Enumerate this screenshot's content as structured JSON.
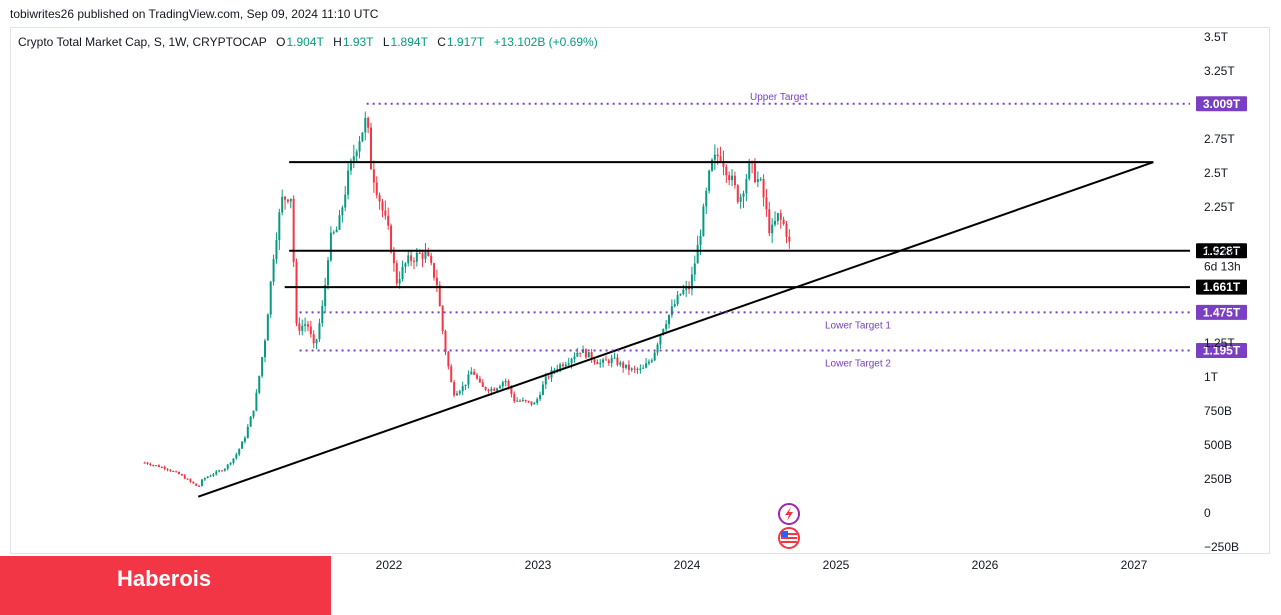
{
  "header": {
    "publisher": "tobiwrites26 published on TradingView.com, Sep 09, 2024 11:10 UTC"
  },
  "legend": {
    "name": "Crypto Total Market Cap, S, 1W, CRYPTOCAP",
    "open_label": "O",
    "open": "1.904T",
    "high_label": "H",
    "high": "1.93T",
    "low_label": "L",
    "low": "1.894T",
    "close_label": "C",
    "close": "1.917T",
    "change": "+13.102B (+0.69%)",
    "value_color": "#089981"
  },
  "brand": {
    "label": "Haberois",
    "color": "#f23645"
  },
  "chart_data": {
    "type": "candlestick",
    "title": "Crypto Total Market Cap, S, 1W, CRYPTOCAP",
    "y_ticks": [
      "3.5T",
      "3.25T",
      "2.75T",
      "2.5T",
      "2.25T",
      "1.917T",
      "1.25T",
      "1T",
      "750B",
      "500B",
      "250B",
      "0",
      "−250B"
    ],
    "y_tick_values_T": [
      3.5,
      3.25,
      2.75,
      2.5,
      2.25,
      1.917,
      1.25,
      1.0,
      0.75,
      0.5,
      0.25,
      0.0,
      -0.25
    ],
    "ylim_T": [
      -0.25,
      3.5
    ],
    "x_ticks": [
      "2022",
      "2023",
      "2024",
      "2025",
      "2026",
      "2027"
    ],
    "x_tick_years": [
      2022,
      2023,
      2024,
      2025,
      2026,
      2027
    ],
    "xlim_years": [
      2020.35,
      2028.05
    ],
    "price_tag": {
      "value": "1.917T",
      "countdown": "6d 13h"
    },
    "price_path_T": [
      [
        2020.36,
        0.37
      ],
      [
        2020.5,
        0.33
      ],
      [
        2020.6,
        0.28
      ],
      [
        2020.72,
        0.19
      ],
      [
        2020.75,
        0.25
      ],
      [
        2020.9,
        0.33
      ],
      [
        2020.97,
        0.42
      ],
      [
        2021.03,
        0.55
      ],
      [
        2021.1,
        0.8
      ],
      [
        2021.17,
        1.3
      ],
      [
        2021.23,
        1.95
      ],
      [
        2021.28,
        2.3
      ],
      [
        2021.34,
        2.35
      ],
      [
        2021.38,
        1.35
      ],
      [
        2021.45,
        1.4
      ],
      [
        2021.5,
        1.2
      ],
      [
        2021.56,
        1.55
      ],
      [
        2021.6,
        2.0
      ],
      [
        2021.66,
        2.1
      ],
      [
        2021.72,
        2.45
      ],
      [
        2021.78,
        2.7
      ],
      [
        2021.85,
        2.9
      ],
      [
        2021.88,
        2.55
      ],
      [
        2021.95,
        2.25
      ],
      [
        2022.0,
        2.05
      ],
      [
        2022.05,
        1.7
      ],
      [
        2022.12,
        1.85
      ],
      [
        2022.2,
        1.9
      ],
      [
        2022.25,
        1.9
      ],
      [
        2022.32,
        1.7
      ],
      [
        2022.37,
        1.25
      ],
      [
        2022.43,
        0.88
      ],
      [
        2022.5,
        0.93
      ],
      [
        2022.56,
        1.05
      ],
      [
        2022.62,
        0.92
      ],
      [
        2022.7,
        0.91
      ],
      [
        2022.78,
        0.98
      ],
      [
        2022.84,
        0.83
      ],
      [
        2022.9,
        0.82
      ],
      [
        2022.98,
        0.8
      ],
      [
        2023.05,
        0.98
      ],
      [
        2023.12,
        1.07
      ],
      [
        2023.2,
        1.12
      ],
      [
        2023.28,
        1.2
      ],
      [
        2023.35,
        1.15
      ],
      [
        2023.42,
        1.1
      ],
      [
        2023.5,
        1.13
      ],
      [
        2023.57,
        1.08
      ],
      [
        2023.63,
        1.05
      ],
      [
        2023.7,
        1.05
      ],
      [
        2023.77,
        1.15
      ],
      [
        2023.83,
        1.35
      ],
      [
        2023.9,
        1.5
      ],
      [
        2023.96,
        1.62
      ],
      [
        2024.02,
        1.66
      ],
      [
        2024.08,
        2.0
      ],
      [
        2024.16,
        2.55
      ],
      [
        2024.22,
        2.65
      ],
      [
        2024.28,
        2.5
      ],
      [
        2024.35,
        2.3
      ],
      [
        2024.42,
        2.55
      ],
      [
        2024.5,
        2.4
      ],
      [
        2024.56,
        2.05
      ],
      [
        2024.61,
        2.18
      ],
      [
        2024.66,
        2.1
      ],
      [
        2024.7,
        1.917
      ]
    ],
    "trendline": {
      "start": [
        2020.72,
        0.12
      ],
      "end": [
        2027.13,
        2.58
      ]
    },
    "resistance_line": {
      "value_T": 2.58,
      "from_year": 2021.33,
      "to_year": 2027.13
    },
    "horizontal_levels": [
      {
        "value": "3.009T",
        "value_T": 3.009,
        "label": "Upper Target",
        "style": "dotted",
        "color": "#7b3fc4",
        "from_year": 2021.85
      },
      {
        "value": "1.928T",
        "value_T": 1.928,
        "label": "",
        "style": "solid",
        "color": "#000000",
        "from_year": 2021.33
      },
      {
        "value": "1.661T",
        "value_T": 1.661,
        "label": "",
        "style": "solid",
        "color": "#000000",
        "from_year": 2021.3
      },
      {
        "value": "1.475T",
        "value_T": 1.475,
        "label": "Lower Target 1",
        "style": "dotted",
        "color": "#7b3fc4",
        "from_year": 2021.4
      },
      {
        "value": "1.195T",
        "value_T": 1.195,
        "label": "Lower Target 2",
        "style": "dotted",
        "color": "#7b3fc4",
        "from_year": 2021.4
      }
    ],
    "colors": {
      "up": "#089981",
      "down": "#f23645",
      "level_purple": "#7b3fc4",
      "line": "#000000"
    }
  }
}
